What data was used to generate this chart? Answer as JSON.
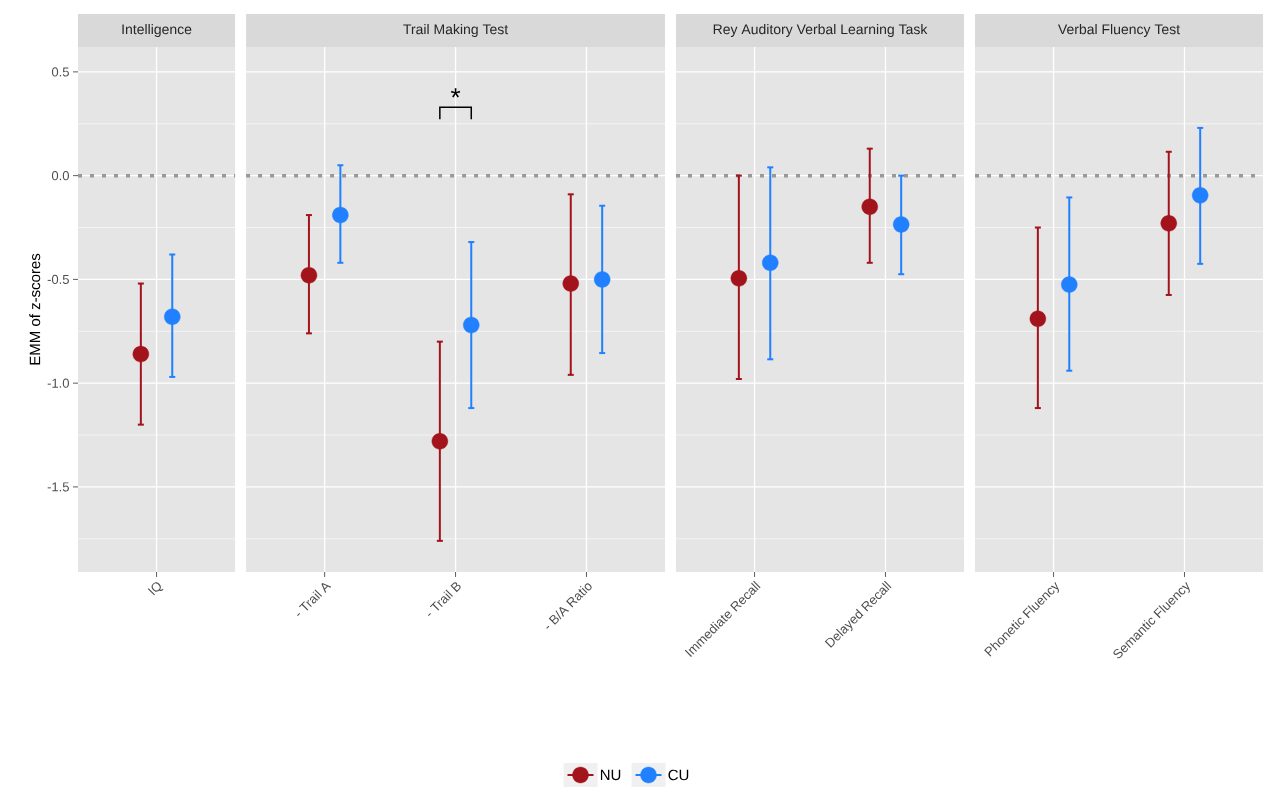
{
  "chart_data": [
    {
      "type": "scatter",
      "title": "Intelligence",
      "ylabel": "EMM of z-scores",
      "categories": [
        "IQ"
      ],
      "ylim": [
        -1.91,
        0.62
      ],
      "yticks": [
        {
          "value": -1.75,
          "label": null
        },
        {
          "value": -1.5,
          "label": "-1.5"
        },
        {
          "value": -1.25,
          "label": null
        },
        {
          "value": -1,
          "label": "-1.0"
        },
        {
          "value": -0.75,
          "label": null
        },
        {
          "value": -0.5,
          "label": "-0.5"
        },
        {
          "value": -0.25,
          "label": null
        },
        {
          "value": 0,
          "label": "0.0"
        },
        {
          "value": 0.25,
          "label": null
        },
        {
          "value": 0.5,
          "label": "0.5"
        }
      ],
      "grid": true,
      "marker": "circle",
      "legend": "bottom",
      "ref_lines": [
        {
          "axis": "y",
          "value": 0,
          "color": "#999999",
          "line_style": "dotted"
        }
      ],
      "series": [
        {
          "name": "NU",
          "color": "#a3131b",
          "values": [
            -0.86
          ],
          "errors": [
            [
              -1.2,
              -0.52
            ]
          ]
        },
        {
          "name": "CU",
          "color": "#2080ff",
          "values": [
            -0.68
          ],
          "errors": [
            [
              -0.97,
              -0.38
            ]
          ]
        }
      ]
    },
    {
      "type": "scatter",
      "title": "Trail Making Test",
      "categories": [
        "- Trail A",
        "- Trail B",
        "- B/A Ratio"
      ],
      "ylim": [
        -1.91,
        0.62
      ],
      "yticks": [
        -1.5,
        -1,
        -0.5,
        0,
        0.5,
        {
          "value": -1.75,
          "label": null
        },
        {
          "value": -1.25,
          "label": null
        },
        {
          "value": -0.75,
          "label": null
        },
        {
          "value": -0.25,
          "label": null
        },
        {
          "value": 0.25,
          "label": null
        }
      ],
      "tick_labels": "x",
      "grid": true,
      "marker": "circle",
      "ref_lines": [
        {
          "axis": "y",
          "value": 0,
          "color": "#999999",
          "line_style": "dotted"
        }
      ],
      "annotations": [
        "*"
      ],
      "series": [
        {
          "color": "#a3131b",
          "values": [
            -0.48,
            -1.28,
            -0.52
          ],
          "errors": [
            [
              -0.76,
              -0.19
            ],
            [
              -1.76,
              -0.8
            ],
            [
              -0.96,
              -0.09
            ]
          ]
        },
        {
          "color": "#2080ff",
          "values": [
            -0.19,
            -0.72,
            -0.5
          ],
          "errors": [
            [
              -0.42,
              0.05
            ],
            [
              -1.12,
              -0.32
            ],
            [
              -0.855,
              -0.145
            ]
          ]
        }
      ]
    },
    {
      "type": "scatter",
      "title": "Rey Auditory Verbal Learning Task",
      "categories": [
        "Immediate Recall",
        "Delayed Recall"
      ],
      "ylim": [
        -1.91,
        0.62
      ],
      "yticks": [
        -1.5,
        -1,
        -0.5,
        0,
        0.5,
        {
          "value": -1.75,
          "label": null
        },
        {
          "value": -1.25,
          "label": null
        },
        {
          "value": -0.75,
          "label": null
        },
        {
          "value": -0.25,
          "label": null
        },
        {
          "value": 0.25,
          "label": null
        }
      ],
      "tick_labels": "x",
      "grid": true,
      "marker": "circle",
      "ref_lines": [
        {
          "axis": "y",
          "value": 0,
          "color": "#999999",
          "line_style": "dotted"
        }
      ],
      "series": [
        {
          "color": "#a3131b",
          "values": [
            -0.495,
            -0.15
          ],
          "errors": [
            [
              -0.98,
              0.0
            ],
            [
              -0.42,
              0.13
            ]
          ]
        },
        {
          "color": "#2080ff",
          "values": [
            -0.42,
            -0.235
          ],
          "errors": [
            [
              -0.885,
              0.04
            ],
            [
              -0.475,
              0.0
            ]
          ]
        }
      ]
    },
    {
      "type": "scatter",
      "title": "Verbal Fluency Test",
      "categories": [
        "Phonetic Fluency",
        "Semantic Fluency"
      ],
      "ylim": [
        -1.91,
        0.62
      ],
      "yticks": [
        -1.5,
        -1,
        -0.5,
        0,
        0.5,
        {
          "value": -1.75,
          "label": null
        },
        {
          "value": -1.25,
          "label": null
        },
        {
          "value": -0.75,
          "label": null
        },
        {
          "value": -0.25,
          "label": null
        },
        {
          "value": 0.25,
          "label": null
        }
      ],
      "tick_labels": "x",
      "grid": true,
      "marker": "circle",
      "ref_lines": [
        {
          "axis": "y",
          "value": 0,
          "color": "#999999",
          "line_style": "dotted"
        }
      ],
      "series": [
        {
          "color": "#a3131b",
          "values": [
            -0.69,
            -0.23
          ],
          "errors": [
            [
              -1.12,
              -0.25
            ],
            [
              -0.575,
              0.115
            ]
          ]
        },
        {
          "color": "#2080ff",
          "values": [
            -0.525,
            -0.095
          ],
          "errors": [
            [
              -0.94,
              -0.105
            ],
            [
              -0.425,
              0.23
            ]
          ]
        }
      ]
    }
  ]
}
